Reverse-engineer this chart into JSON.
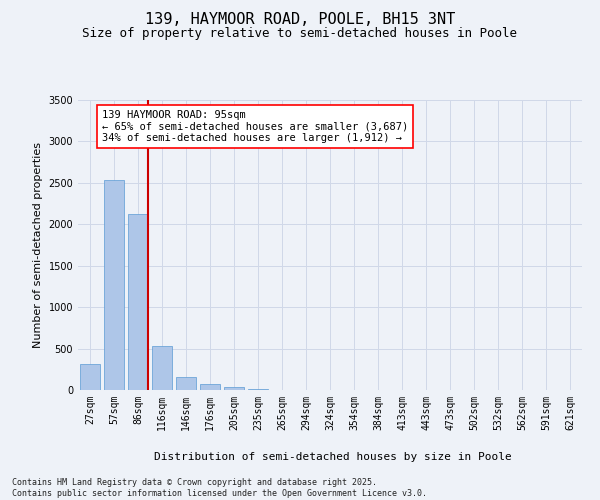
{
  "title": "139, HAYMOOR ROAD, POOLE, BH15 3NT",
  "subtitle": "Size of property relative to semi-detached houses in Poole",
  "xlabel": "Distribution of semi-detached houses by size in Poole",
  "ylabel": "Number of semi-detached properties",
  "categories": [
    "27sqm",
    "57sqm",
    "86sqm",
    "116sqm",
    "146sqm",
    "176sqm",
    "205sqm",
    "235sqm",
    "265sqm",
    "294sqm",
    "324sqm",
    "354sqm",
    "384sqm",
    "413sqm",
    "443sqm",
    "473sqm",
    "502sqm",
    "532sqm",
    "562sqm",
    "591sqm",
    "621sqm"
  ],
  "values": [
    310,
    2530,
    2130,
    530,
    155,
    75,
    35,
    10,
    0,
    0,
    0,
    0,
    0,
    0,
    0,
    0,
    0,
    0,
    0,
    0,
    0
  ],
  "bar_color": "#aec6e8",
  "bar_edge_color": "#5b9bd5",
  "grid_color": "#d0d8e8",
  "background_color": "#eef2f8",
  "vline_color": "#cc0000",
  "annotation_text_line1": "139 HAYMOOR ROAD: 95sqm",
  "annotation_text_line2": "← 65% of semi-detached houses are smaller (3,687)",
  "annotation_text_line3": "34% of semi-detached houses are larger (1,912) →",
  "ylim": [
    0,
    3500
  ],
  "yticks": [
    0,
    500,
    1000,
    1500,
    2000,
    2500,
    3000,
    3500
  ],
  "footnote_line1": "Contains HM Land Registry data © Crown copyright and database right 2025.",
  "footnote_line2": "Contains public sector information licensed under the Open Government Licence v3.0.",
  "title_fontsize": 11,
  "subtitle_fontsize": 9,
  "axis_label_fontsize": 8,
  "tick_fontsize": 7,
  "annotation_fontsize": 7.5,
  "footnote_fontsize": 6
}
